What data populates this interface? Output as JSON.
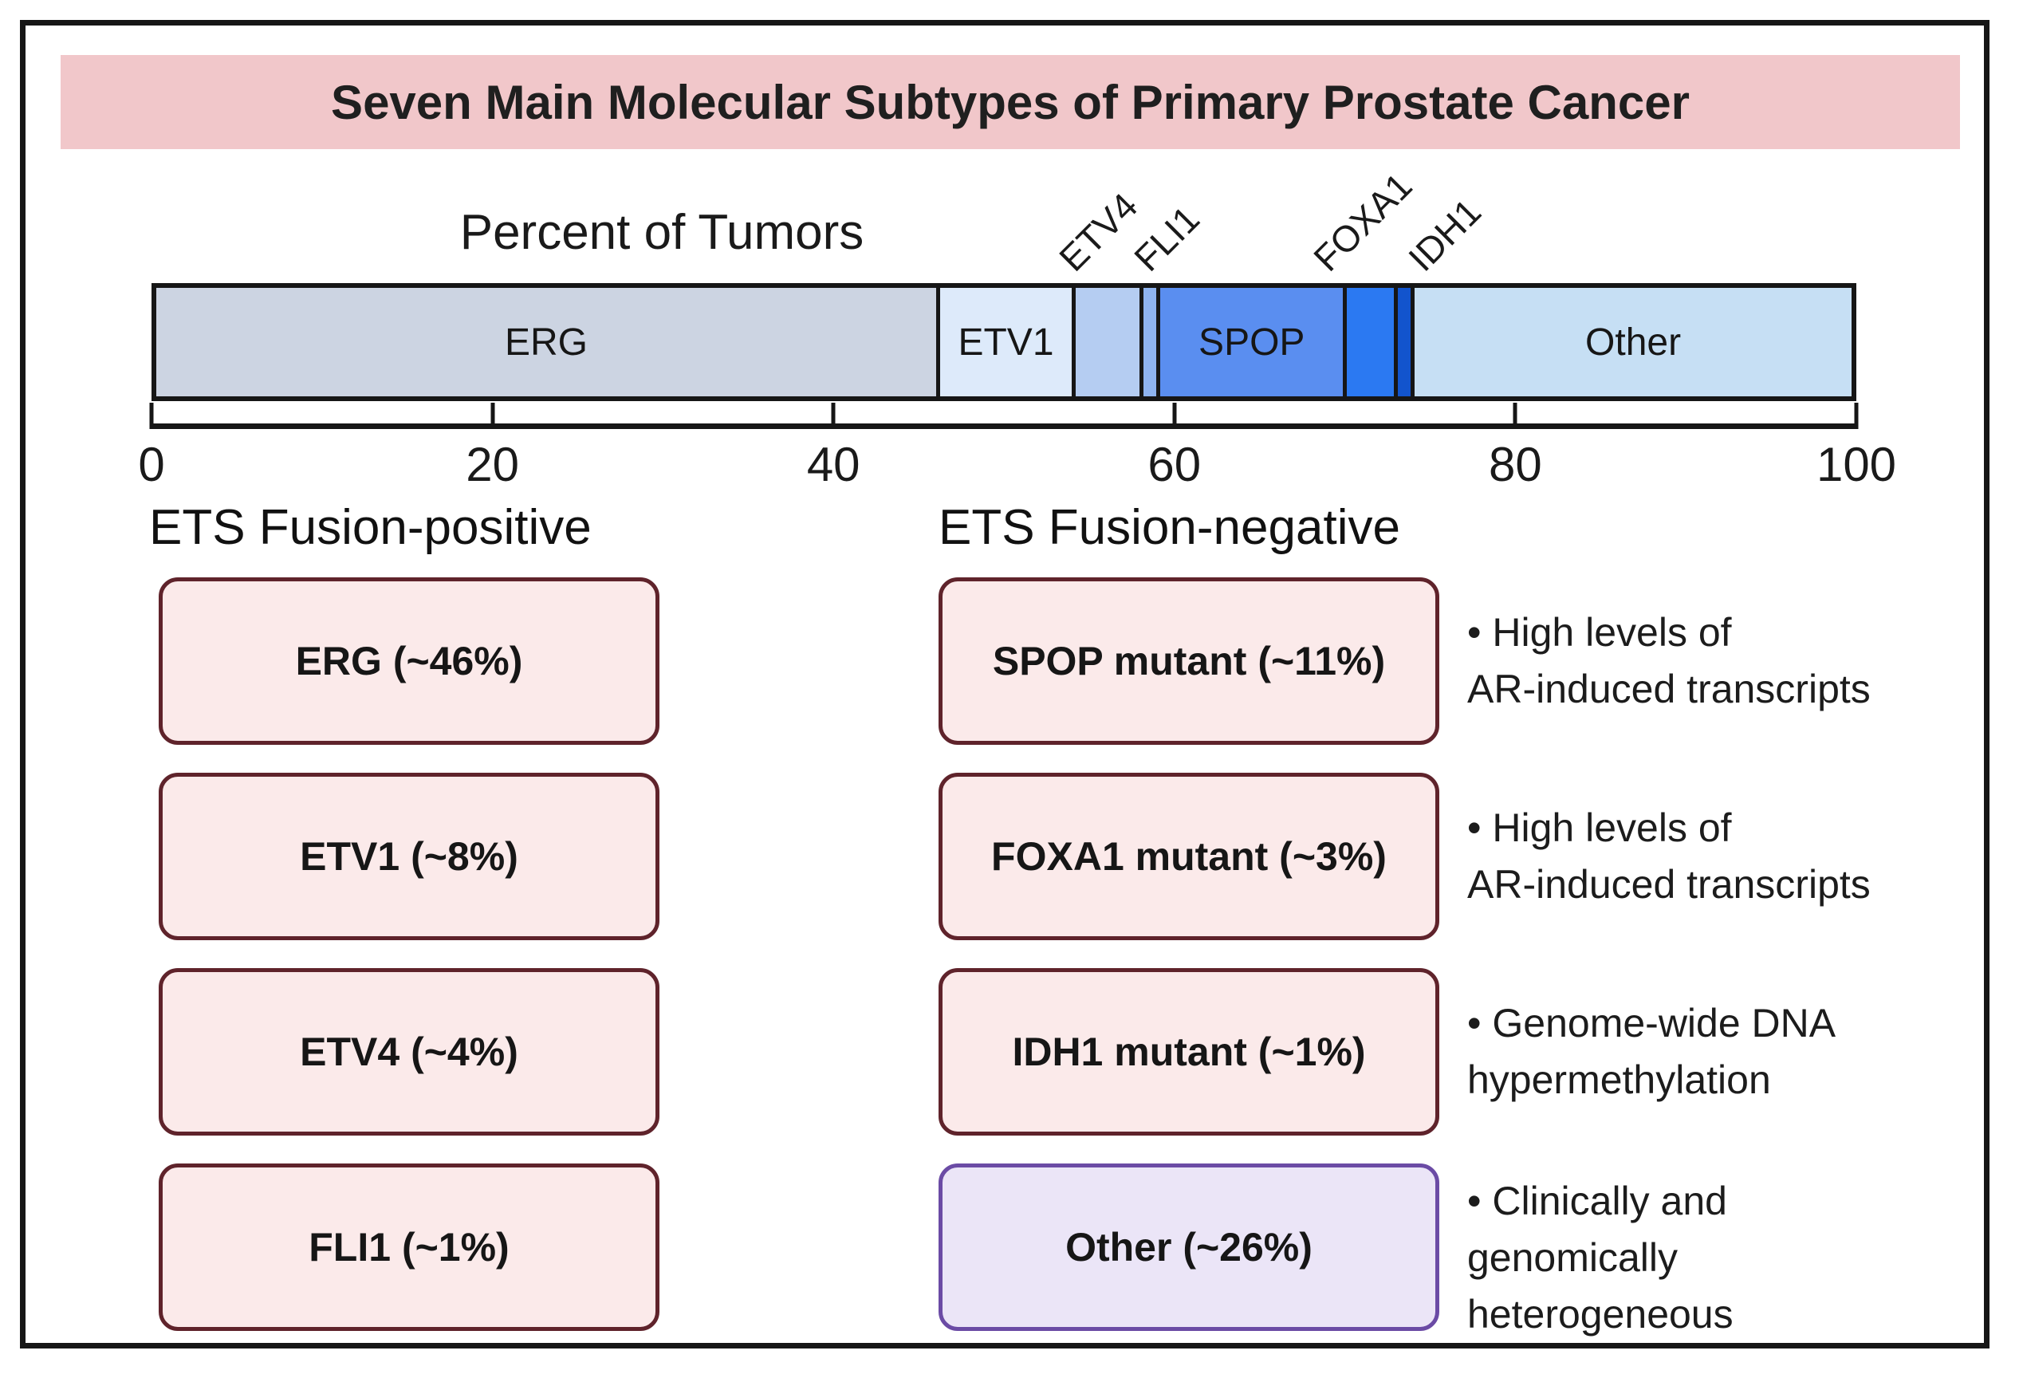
{
  "title": "Seven Main Molecular Subtypes of Primary Prostate Cancer",
  "chart_data": {
    "type": "bar",
    "orientation": "horizontal-stacked",
    "axis_label": "Percent of Tumors",
    "xlim": [
      0,
      100
    ],
    "x_ticks": [
      0,
      20,
      40,
      60,
      80,
      100
    ],
    "grid": false,
    "segments": [
      {
        "name": "ERG",
        "value": 46,
        "color": "#ccd4e2",
        "show_label_inside": true,
        "callout": false
      },
      {
        "name": "ETV1",
        "value": 8,
        "color": "#ddeafa",
        "show_label_inside": true,
        "callout": false
      },
      {
        "name": "ETV4",
        "value": 4,
        "color": "#b5cdf2",
        "show_label_inside": false,
        "callout": true
      },
      {
        "name": "FLI1",
        "value": 1,
        "color": "#8fb4f0",
        "show_label_inside": false,
        "callout": true
      },
      {
        "name": "SPOP",
        "value": 11,
        "color": "#5a8ef0",
        "show_label_inside": true,
        "callout": false
      },
      {
        "name": "FOXA1",
        "value": 3,
        "color": "#2b79f2",
        "show_label_inside": false,
        "callout": true
      },
      {
        "name": "IDH1",
        "value": 1,
        "color": "#1254cd",
        "show_label_inside": false,
        "callout": true
      },
      {
        "name": "Other",
        "value": 26,
        "color": "#c6dff4",
        "show_label_inside": true,
        "callout": false
      }
    ]
  },
  "groups": [
    {
      "header": "ETS Fusion-positive",
      "boxes": [
        {
          "label": "ERG (~46%)",
          "style": "pink"
        },
        {
          "label": "ETV1 (~8%)",
          "style": "pink"
        },
        {
          "label": "ETV4 (~4%)",
          "style": "pink"
        },
        {
          "label": "FLI1 (~1%)",
          "style": "pink"
        }
      ]
    },
    {
      "header": "ETS Fusion-negative",
      "boxes": [
        {
          "label": "SPOP mutant (~11%)",
          "style": "pink",
          "note": "• High levels of\nAR-induced transcripts"
        },
        {
          "label": "FOXA1 mutant (~3%)",
          "style": "pink",
          "note": "• High levels of\nAR-induced transcripts"
        },
        {
          "label": "IDH1 mutant (~1%)",
          "style": "pink",
          "note": "• Genome-wide DNA\nhypermethylation"
        },
        {
          "label": "Other (~26%)",
          "style": "purple",
          "note": "• Clinically and\ngenomically\nheterogeneous"
        }
      ]
    }
  ],
  "colors": {
    "banner_bg": "#f1c7ca",
    "box_pink_fill": "#fbeaea",
    "box_maroon_border": "#5f232b",
    "box_purple_fill": "#ebe5f7",
    "box_purple_border": "#6b4ba5",
    "frame_border": "#161616",
    "bar_outline": "#161616"
  }
}
